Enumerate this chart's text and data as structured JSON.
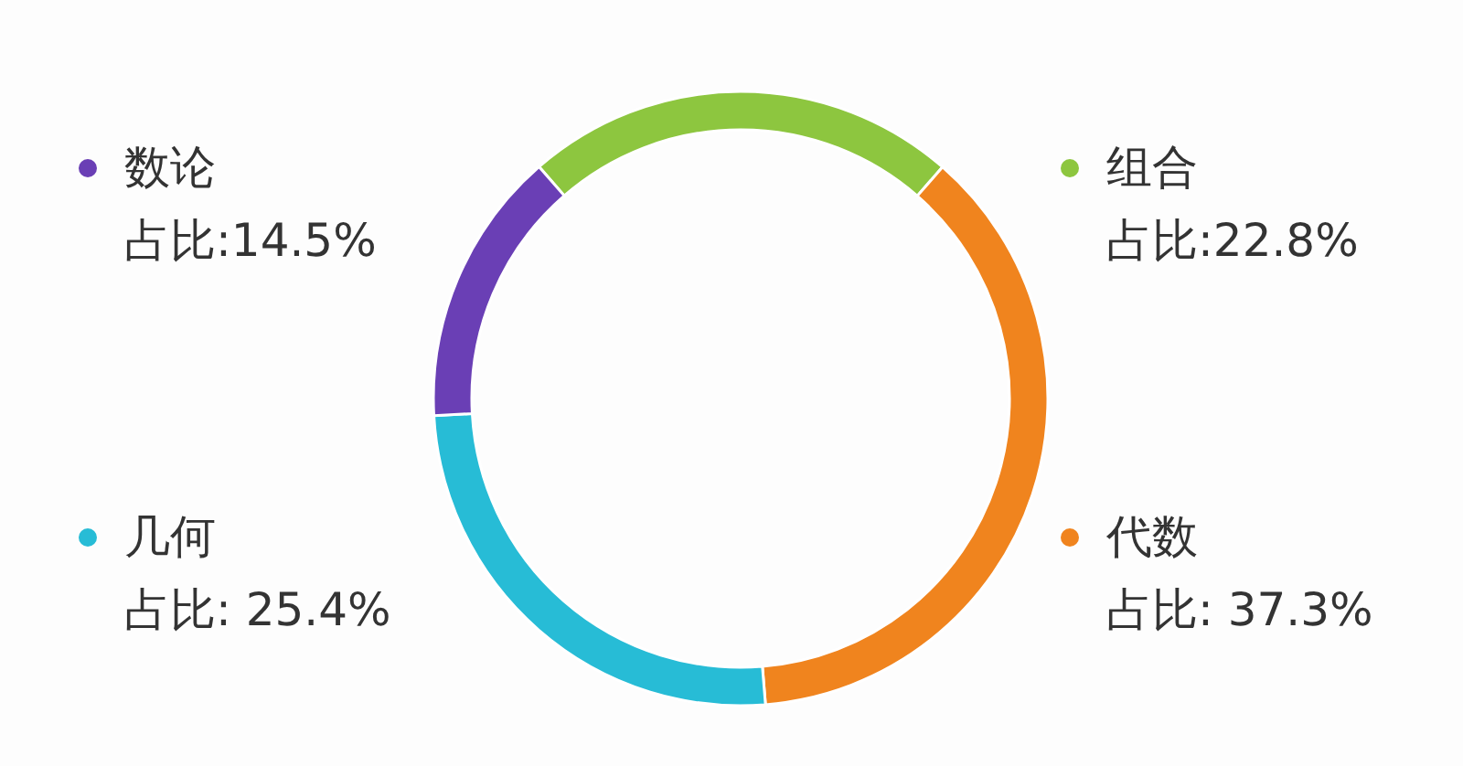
{
  "chart_data": {
    "type": "donut",
    "categories": [
      "组合",
      "代数",
      "几何",
      "数论"
    ],
    "values": [
      22.8,
      37.3,
      25.4,
      14.5
    ],
    "colors": [
      "#8dc63f",
      "#f0841e",
      "#27bcd6",
      "#6a3fb5"
    ],
    "value_labels": [
      "占比:22.8%",
      "占比: 37.3%",
      "占比: 25.4%",
      "占比:14.5%"
    ],
    "legend": "left"
  }
}
